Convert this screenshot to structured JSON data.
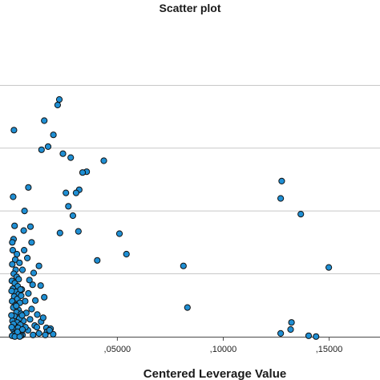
{
  "colors": {
    "marker_fill": "#1f8fd4",
    "marker_edge": "#111111",
    "gridline": "#c8c8c8",
    "background": "#ffffff"
  },
  "chart_data": {
    "type": "scatter",
    "title": "Scatter plot",
    "xlabel": "Centered Leverage Value",
    "ylabel": "",
    "xlim": [
      -0.0054,
      0.174
    ],
    "ylim": [
      -2e-05,
      0.03833
    ],
    "grid": {
      "horizontal": true,
      "vertical": false
    },
    "xticks": [
      {
        "value": 0.05,
        "label": ",05000"
      },
      {
        "value": 0.1,
        "label": ",10000"
      },
      {
        "value": 0.15,
        "label": ",15000"
      }
    ],
    "yticks": [
      0.0,
      0.008,
      0.016,
      0.024,
      0.032
    ],
    "series": [
      {
        "points": [
          [
            0.1276,
            0.0198
          ],
          [
            0.1271,
            0.0176
          ],
          [
            0.1366,
            0.0156
          ],
          [
            0.1498,
            0.0088
          ],
          [
            0.0812,
            0.009
          ],
          [
            0.0831,
            0.0037
          ],
          [
            0.1322,
            0.0018
          ],
          [
            0.1318,
            0.0009
          ],
          [
            0.1271,
            0.0004
          ],
          [
            0.1403,
            0.0001
          ],
          [
            0.1438,
            0.0
          ],
          [
            0.051,
            0.0131
          ],
          [
            0.0543,
            0.0105
          ],
          [
            0.0436,
            0.0224
          ],
          [
            0.0405,
            0.0097
          ],
          [
            0.0355,
            0.021
          ],
          [
            0.0336,
            0.0209
          ],
          [
            0.032,
            0.0187
          ],
          [
            0.0305,
            0.0183
          ],
          [
            0.029,
            0.0154
          ],
          [
            0.028,
            0.0228
          ],
          [
            0.0269,
            0.0166
          ],
          [
            0.0257,
            0.0183
          ],
          [
            0.0243,
            0.0233
          ],
          [
            0.0226,
            0.0302
          ],
          [
            0.0218,
            0.0295
          ],
          [
            0.0198,
            0.0257
          ],
          [
            0.0173,
            0.0242
          ],
          [
            0.0142,
            0.0238
          ],
          [
            0.0229,
            0.0132
          ],
          [
            0.0316,
            0.0134
          ],
          [
            0.0155,
            0.0275
          ],
          [
            0.0105,
            0.0081
          ],
          [
            0.0138,
            0.0065
          ],
          [
            0.0113,
            0.0046
          ],
          [
            0.0088,
            0.0022
          ],
          [
            0.011,
            0.0014
          ],
          [
            0.0078,
            0.0008
          ],
          [
            0.0165,
            0.0011
          ],
          [
            0.0168,
            0.0006
          ],
          [
            0.016,
            0.0002
          ],
          [
            0.0185,
            0.001
          ],
          [
            0.0197,
            0.0003
          ],
          [
            0.013,
            0.0004
          ],
          [
            0.012,
            0.0012
          ],
          [
            0.014,
            0.0019
          ],
          [
            0.0095,
            0.0035
          ],
          [
            0.008,
            0.0055
          ],
          [
            0.0122,
            0.0028
          ],
          [
            0.01,
            0.0066
          ],
          [
            0.013,
            0.009
          ],
          [
            0.015,
            0.0024
          ],
          [
            0.0155,
            0.005
          ],
          [
            0.0065,
            0.0045
          ],
          [
            0.007,
            0.003
          ],
          [
            0.0085,
            0.0072
          ],
          [
            0.006,
            0.011
          ],
          [
            0.0075,
            0.01
          ],
          [
            0.009,
            0.014
          ],
          [
            0.0062,
            0.016
          ],
          [
            0.008,
            0.019
          ],
          [
            0.0095,
            0.012
          ],
          [
            0.0058,
            0.0135
          ],
          [
            0.0052,
            0.0085
          ],
          [
            0.0049,
            0.006
          ],
          [
            0.0057,
            0.002
          ],
          [
            0.0066,
            0.0012
          ],
          [
            0.0052,
            0.0002
          ],
          [
            0.018,
            0.0008
          ],
          [
            0.0102,
            0.0002
          ],
          [
            0.0012,
            0.0263
          ],
          [
            0.0008,
            0.0178
          ],
          [
            0.0015,
            0.0141
          ],
          [
            0.001,
            0.0124
          ],
          [
            0.0006,
            0.011
          ],
          [
            0.0018,
            0.0098
          ],
          [
            0.0004,
            0.0092
          ],
          [
            0.002,
            0.0085
          ],
          [
            0.0011,
            0.008
          ],
          [
            0.0025,
            0.0076
          ],
          [
            0.0002,
            0.0071
          ],
          [
            0.0016,
            0.0068
          ],
          [
            0.003,
            0.0064
          ],
          [
            0.0007,
            0.0061
          ],
          [
            0.0022,
            0.0057
          ],
          [
            0.0035,
            0.0054
          ],
          [
            0.0013,
            0.0051
          ],
          [
            0.0028,
            0.0048
          ],
          [
            0.0003,
            0.0045
          ],
          [
            0.004,
            0.0043
          ],
          [
            0.0019,
            0.004
          ],
          [
            0.0009,
            0.0037
          ],
          [
            0.0033,
            0.0034
          ],
          [
            0.0024,
            0.0031
          ],
          [
            0.0045,
            0.0029
          ],
          [
            0.0014,
            0.0026
          ],
          [
            0.0037,
            0.0023
          ],
          [
            0.0005,
            0.002
          ],
          [
            0.0027,
            0.0018
          ],
          [
            0.0042,
            0.0015
          ],
          [
            0.0017,
            0.0013
          ],
          [
            0.0031,
            0.0011
          ],
          [
            0.0008,
            0.0009
          ],
          [
            0.0048,
            0.0007
          ],
          [
            0.0021,
            0.0005
          ],
          [
            0.0036,
            0.0004
          ],
          [
            0.0012,
            0.0003
          ],
          [
            0.0026,
            0.0002
          ],
          [
            0.0044,
            0.0001
          ],
          [
            0.0003,
            0.0001
          ],
          [
            0.0016,
            0.0
          ],
          [
            0.0039,
            0.0
          ],
          [
            0.0029,
            0.0006
          ],
          [
            0.001,
            0.0016
          ],
          [
            0.0023,
            0.0039
          ],
          [
            0.0046,
            0.0052
          ],
          [
            0.0001,
            0.0058
          ],
          [
            0.0034,
            0.0073
          ],
          [
            0.0038,
            0.0094
          ],
          [
            0.0004,
            0.012
          ],
          [
            0.0026,
            0.0105
          ],
          [
            0.005,
            0.0027
          ],
          [
            0.0052,
            0.0009
          ],
          [
            0.0,
            0.0027
          ],
          [
            0.0001,
            0.0012
          ],
          [
            0.0043,
            0.006
          ]
        ]
      }
    ]
  }
}
